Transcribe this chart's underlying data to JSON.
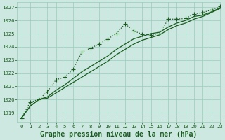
{
  "title": "Graphe pression niveau de la mer (hPa)",
  "background_color": "#cce8e0",
  "grid_color": "#99ccbb",
  "line_color": "#1a5c20",
  "xlim": [
    -0.5,
    23
  ],
  "ylim": [
    1018.3,
    1027.4
  ],
  "yticks": [
    1019,
    1020,
    1021,
    1022,
    1023,
    1024,
    1025,
    1026,
    1027
  ],
  "xticks": [
    0,
    1,
    2,
    3,
    4,
    5,
    6,
    7,
    8,
    9,
    10,
    11,
    12,
    13,
    14,
    15,
    16,
    17,
    18,
    19,
    20,
    21,
    22,
    23
  ],
  "series_marker": [
    1018.6,
    1019.8,
    1020.0,
    1020.6,
    1021.5,
    1021.7,
    1022.3,
    1023.6,
    1023.9,
    1024.2,
    1024.6,
    1025.0,
    1025.75,
    1025.2,
    1024.95,
    1024.9,
    1025.0,
    1026.1,
    1026.1,
    1026.15,
    1026.5,
    1026.6,
    1026.8,
    1027.05
  ],
  "series_line1": [
    1018.6,
    1019.5,
    1020.0,
    1020.1,
    1020.5,
    1020.9,
    1021.3,
    1021.7,
    1022.1,
    1022.5,
    1022.9,
    1023.4,
    1023.8,
    1024.2,
    1024.5,
    1024.7,
    1024.9,
    1025.3,
    1025.6,
    1025.8,
    1026.1,
    1026.3,
    1026.6,
    1026.9
  ],
  "series_line2": [
    1018.6,
    1019.5,
    1020.0,
    1020.2,
    1020.7,
    1021.1,
    1021.6,
    1022.1,
    1022.5,
    1022.9,
    1023.3,
    1023.8,
    1024.2,
    1024.6,
    1024.8,
    1025.0,
    1025.1,
    1025.5,
    1025.8,
    1026.0,
    1026.3,
    1026.4,
    1026.65,
    1026.95
  ],
  "marker": "+",
  "markersize": 4,
  "linewidth": 0.9,
  "title_fontsize": 7.0,
  "tick_fontsize": 5.2,
  "fig_width": 3.2,
  "fig_height": 2.0,
  "dpi": 100
}
